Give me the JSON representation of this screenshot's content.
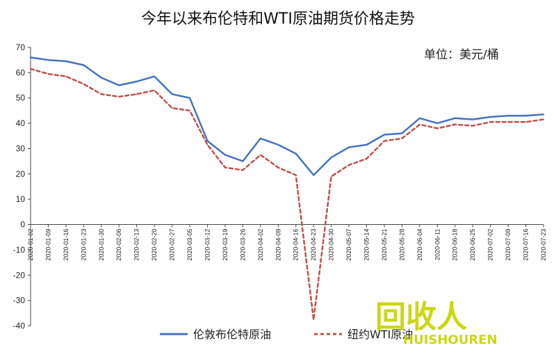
{
  "chart_data": {
    "type": "line",
    "title": "今年以来布伦特和WTI原油期货价格走势",
    "unit_label": "单位：美元/桶",
    "ylim": [
      -40,
      70
    ],
    "y_ticks": [
      70,
      60,
      50,
      40,
      30,
      20,
      10,
      0,
      -10,
      -20,
      -30,
      -40
    ],
    "legend_position": "bottom",
    "grid": false,
    "categories": [
      "2020-01-02",
      "2020-01-09",
      "2020-01-16",
      "2020-01-23",
      "2020-01-30",
      "2020-02-06",
      "2020-02-13",
      "2020-02-20",
      "2020-02-27",
      "2020-03-05",
      "2020-03-12",
      "2020-03-19",
      "2020-03-26",
      "2020-04-02",
      "2020-04-09",
      "2020-04-16",
      "2020-04-23",
      "2020-04-30",
      "2020-05-07",
      "2020-05-14",
      "2020-05-21",
      "2020-05-28",
      "2020-06-04",
      "2020-06-11",
      "2020-06-18",
      "2020-06-25",
      "2020-07-02",
      "2020-07-09",
      "2020-07-16",
      "2020-07-23"
    ],
    "series": [
      {
        "name": "伦敦布伦特原油",
        "color": "#4472c4",
        "style": "solid",
        "values": [
          66,
          65,
          64.5,
          63,
          58,
          55,
          56.5,
          58.5,
          51.5,
          50,
          33,
          27.5,
          25,
          34,
          31.5,
          28,
          19.5,
          26.5,
          30.5,
          31.5,
          35.5,
          36,
          42,
          40,
          42,
          41.5,
          42.5,
          43,
          43,
          43.5
        ]
      },
      {
        "name": "纽约WTI原油",
        "color": "#c0504d",
        "style": "dashed",
        "values": [
          61.5,
          59.5,
          58.5,
          55.5,
          51.5,
          50.5,
          51.5,
          53,
          46,
          45,
          31.5,
          22.5,
          21.5,
          27.5,
          22.5,
          19.5,
          -37.6,
          19,
          23.5,
          26,
          33,
          34,
          39.5,
          38,
          39.5,
          39,
          40.5,
          40.5,
          40.5,
          41.5
        ]
      }
    ]
  },
  "watermark": {
    "main": "回收人",
    "sub": "HUISHOUREN",
    "color": "#c8d400"
  }
}
